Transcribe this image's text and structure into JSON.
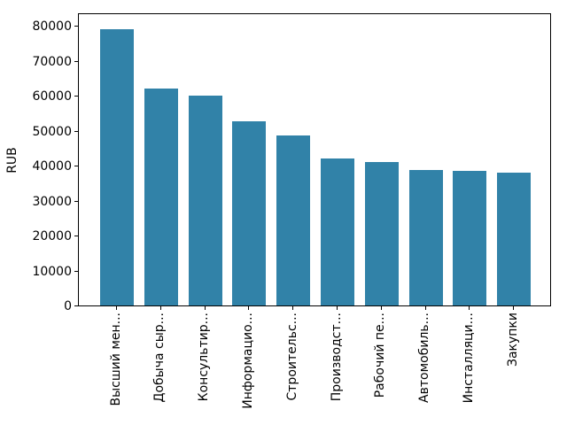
{
  "chart_data": {
    "type": "bar",
    "title": "",
    "xlabel": "",
    "ylabel": "RUB",
    "categories": [
      "Высший мен...",
      "Добыча сыр...",
      "Консультир...",
      "Информацио...",
      "Строительс...",
      "Производст...",
      "Рабочий пе...",
      "Автомобиль...",
      "Инсталляци...",
      "Закупки"
    ],
    "values": [
      79000,
      62000,
      60000,
      52700,
      48600,
      42000,
      41000,
      38700,
      38500,
      37900
    ],
    "yticks": [
      0,
      10000,
      20000,
      30000,
      40000,
      50000,
      60000,
      70000,
      80000
    ],
    "ylim": [
      0,
      83800
    ],
    "grid": false,
    "legend": "none",
    "bar_color": "#3182a8",
    "axis_color": "#000000",
    "text_color": "#000000",
    "background_color": "#ffffff",
    "xtick_label_rotation_degrees": 90
  }
}
